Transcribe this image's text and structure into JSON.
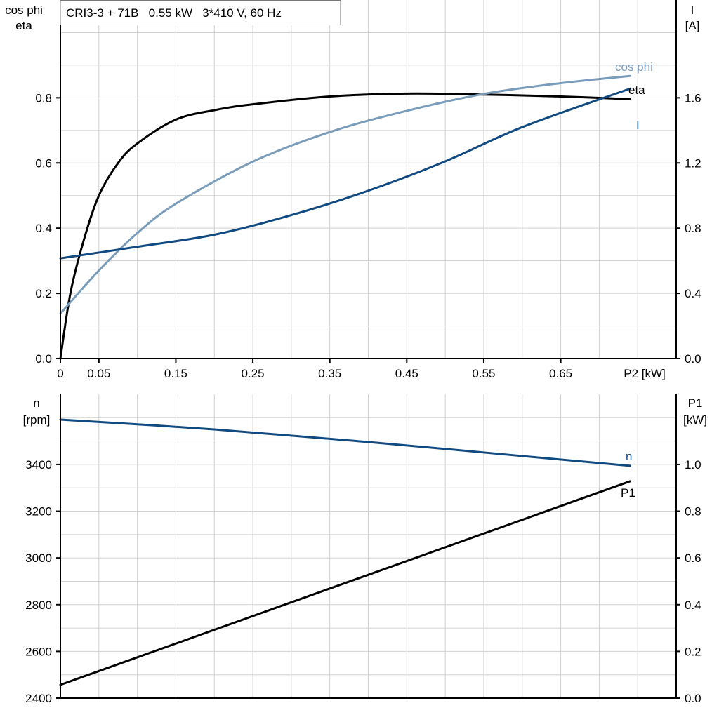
{
  "chart_data": [
    {
      "type": "line",
      "title": "CRI3-3 + 71B   0.55 kW   3*410 V, 60 Hz",
      "xlabel": "P2 [kW]",
      "xlim": [
        0,
        0.8
      ],
      "xticks": [
        "0",
        "0.05",
        "0.15",
        "0.25",
        "0.35",
        "0.45",
        "0.55",
        "0.65"
      ],
      "xtick_values": [
        0,
        0.05,
        0.15,
        0.25,
        0.35,
        0.45,
        0.55,
        0.65
      ],
      "ylabel_left": [
        "cos phi",
        "eta"
      ],
      "ylim_left": [
        0,
        1.1
      ],
      "yticks_left": [
        "0.0",
        "0.2",
        "0.4",
        "0.6",
        "0.8"
      ],
      "ylabel_right": [
        "I",
        "[A]"
      ],
      "ylim_right": [
        0,
        2.2
      ],
      "yticks_right": [
        "0.0",
        "0.4",
        "0.8",
        "1.2",
        "1.6"
      ],
      "grid": true,
      "series": [
        {
          "name": "eta",
          "axis": "left",
          "color": "#000000",
          "x": [
            0,
            0.013,
            0.03,
            0.05,
            0.075,
            0.1,
            0.15,
            0.2,
            0.25,
            0.35,
            0.45,
            0.55,
            0.65,
            0.74
          ],
          "y": [
            0,
            0.2,
            0.36,
            0.5,
            0.6,
            0.66,
            0.733,
            0.762,
            0.78,
            0.804,
            0.813,
            0.81,
            0.804,
            0.796
          ]
        },
        {
          "name": "cos phi",
          "axis": "left",
          "color": "#7a9cbb",
          "x": [
            0,
            0.05,
            0.1,
            0.15,
            0.25,
            0.35,
            0.45,
            0.55,
            0.65,
            0.74
          ],
          "y": [
            0.138,
            0.27,
            0.385,
            0.475,
            0.604,
            0.695,
            0.76,
            0.812,
            0.845,
            0.867
          ]
        },
        {
          "name": "I",
          "axis": "right",
          "color": "#104a80",
          "x": [
            0,
            0.1,
            0.2,
            0.3,
            0.4,
            0.5,
            0.6,
            0.74
          ],
          "y": [
            0.615,
            0.686,
            0.76,
            0.88,
            1.03,
            1.21,
            1.42,
            1.656
          ]
        }
      ]
    },
    {
      "type": "line",
      "xlim": [
        0,
        0.8
      ],
      "ylabel_left": [
        "n",
        "[rpm]"
      ],
      "ylim_left": [
        2400,
        3700
      ],
      "yticks_left": [
        "2400",
        "2600",
        "2800",
        "3000",
        "3200",
        "3400"
      ],
      "ylabel_right": [
        "P1",
        "[kW]"
      ],
      "ylim_right": [
        0,
        1.3
      ],
      "yticks_right": [
        "0.0",
        "0.2",
        "0.4",
        "0.6",
        "0.8",
        "1.0"
      ],
      "grid": true,
      "series": [
        {
          "name": "n",
          "axis": "left",
          "color": "#104a80",
          "x": [
            0,
            0.2,
            0.4,
            0.6,
            0.74
          ],
          "y": [
            3592,
            3550,
            3496,
            3436,
            3394
          ]
        },
        {
          "name": "P1",
          "axis": "right",
          "color": "#000000",
          "x": [
            0,
            0.74
          ],
          "y": [
            0.057,
            0.928
          ]
        }
      ]
    }
  ]
}
